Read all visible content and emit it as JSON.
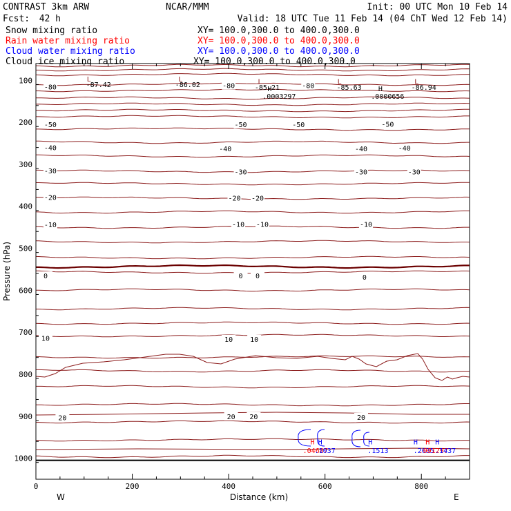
{
  "header": {
    "title": "CONTRAST  3km ARW",
    "center": "NCAR/MMM",
    "init": "Init: 00 UTC Mon 10 Feb 14",
    "fcst_label": "Fcst:",
    "fcst_value": "42 h",
    "valid": "Valid: 18 UTC Tue 11 Feb 14 (04 ChT Wed 12 Feb 14)"
  },
  "legend": [
    {
      "name": "Snow mixing ratio",
      "xy": "XY= 100.0,300.0 to 400.0,300.0",
      "color": "#000000"
    },
    {
      "name": "Rain water mixing ratio",
      "xy": "XY= 100.0,300.0 to 400.0,300.0",
      "color": "#ff0000"
    },
    {
      "name": "Cloud water mixing ratio",
      "xy": "XY= 100.0,300.0 to 400.0,300.0",
      "color": "#0000ff"
    },
    {
      "name": "Cloud ice mixing ratio",
      "xy": "XY= 100.0,300.0 to 400.0,300.0",
      "color": "#000000"
    }
  ],
  "colors": {
    "contour": "#8b1a1a",
    "zero": "#6b0000",
    "rain": "#ff0000",
    "cloud": "#0000ff",
    "axis": "#000000"
  },
  "chart_data": {
    "type": "contour",
    "xlabel": "Distance (km)",
    "ylabel": "Pressure (hPa)",
    "xlim": [
      0,
      900
    ],
    "ylim": [
      1050,
      60
    ],
    "x_ticks": [
      0,
      200,
      400,
      600,
      800
    ],
    "y_ticks": [
      100,
      200,
      300,
      400,
      500,
      600,
      700,
      800,
      900,
      1000
    ],
    "x_end_labels": {
      "left": "W",
      "right": "E"
    },
    "temperature_labels": [
      {
        "value": "-80",
        "x": 30,
        "p": 115
      },
      {
        "value": "-80",
        "x": 400,
        "p": 112
      },
      {
        "value": "-80",
        "x": 565,
        "p": 112
      },
      {
        "value": "-50",
        "x": 30,
        "p": 205
      },
      {
        "value": "-50",
        "x": 425,
        "p": 205
      },
      {
        "value": "-50",
        "x": 545,
        "p": 205
      },
      {
        "value": "-50",
        "x": 730,
        "p": 204
      },
      {
        "value": "-40",
        "x": 30,
        "p": 260
      },
      {
        "value": "-40",
        "x": 393,
        "p": 262
      },
      {
        "value": "-40",
        "x": 675,
        "p": 262
      },
      {
        "value": "-40",
        "x": 765,
        "p": 261
      },
      {
        "value": "-30",
        "x": 30,
        "p": 315
      },
      {
        "value": "-30",
        "x": 425,
        "p": 317
      },
      {
        "value": "-30",
        "x": 675,
        "p": 317
      },
      {
        "value": "-30",
        "x": 785,
        "p": 317
      },
      {
        "value": "-20",
        "x": 30,
        "p": 378
      },
      {
        "value": "-20",
        "x": 412,
        "p": 380
      },
      {
        "value": "-20",
        "x": 460,
        "p": 380
      },
      {
        "value": "-10",
        "x": 30,
        "p": 443
      },
      {
        "value": "-10",
        "x": 420,
        "p": 442
      },
      {
        "value": "-10",
        "x": 470,
        "p": 442
      },
      {
        "value": "-10",
        "x": 685,
        "p": 442
      },
      {
        "value": "0",
        "x": 20,
        "p": 565
      },
      {
        "value": "0",
        "x": 425,
        "p": 565
      },
      {
        "value": "0",
        "x": 460,
        "p": 565
      },
      {
        "value": "0",
        "x": 682,
        "p": 568
      },
      {
        "value": "10",
        "x": 20,
        "p": 714
      },
      {
        "value": "10",
        "x": 400,
        "p": 716
      },
      {
        "value": "10",
        "x": 453,
        "p": 716
      },
      {
        "value": "20",
        "x": 55,
        "p": 903
      },
      {
        "value": "20",
        "x": 405,
        "p": 900
      },
      {
        "value": "20",
        "x": 452,
        "p": 900
      },
      {
        "value": "20",
        "x": 675,
        "p": 902
      }
    ],
    "lows": [
      {
        "label": "L",
        "value": "-87.42",
        "x": 110,
        "p": 96,
        "vx": 130,
        "vp": 109
      },
      {
        "label": "L",
        "value": "-86.02",
        "x": 300,
        "p": 96,
        "vx": 315,
        "vp": 109
      },
      {
        "label": "L",
        "value": "-85.21",
        "x": 465,
        "p": 102,
        "vx": 480,
        "vp": 116
      },
      {
        "label": "L",
        "value": "-85.63",
        "x": 630,
        "p": 102,
        "vx": 650,
        "vp": 116
      },
      {
        "label": "L",
        "value": "-86.94",
        "x": 790,
        "p": 102,
        "vx": 805,
        "vp": 116
      }
    ],
    "highs": [
      {
        "label": "H",
        "value": ".0003297",
        "x": 485,
        "p": 119,
        "vx": 505,
        "vp": 137,
        "color": "#000000"
      },
      {
        "label": "H",
        "value": ".0000656",
        "x": 715,
        "p": 119,
        "vx": 730,
        "vp": 137,
        "color": "#000000"
      },
      {
        "label": "H",
        "value": ".04687",
        "x": 574,
        "p": 960,
        "vx": 580,
        "vp": 981,
        "color": "#ff0000"
      },
      {
        "label": "H",
        "value": ".1037",
        "x": 590,
        "p": 960,
        "vx": 600,
        "vp": 981,
        "color": "#0000ff"
      },
      {
        "label": "H",
        "value": ".1513",
        "x": 694,
        "p": 960,
        "vx": 710,
        "vp": 981,
        "color": "#0000ff"
      },
      {
        "label": "H",
        "value": ".2635",
        "x": 788,
        "p": 960,
        "vx": 805,
        "vp": 981,
        "color": "#0000ff"
      },
      {
        "label": "H",
        "value": ".001297",
        "x": 813,
        "p": 960,
        "vx": 825,
        "vp": 981,
        "color": "#ff0000"
      },
      {
        "label": "H",
        "value": ".1437",
        "x": 833,
        "p": 960,
        "vx": 850,
        "vp": 981,
        "color": "#0000ff"
      }
    ]
  }
}
